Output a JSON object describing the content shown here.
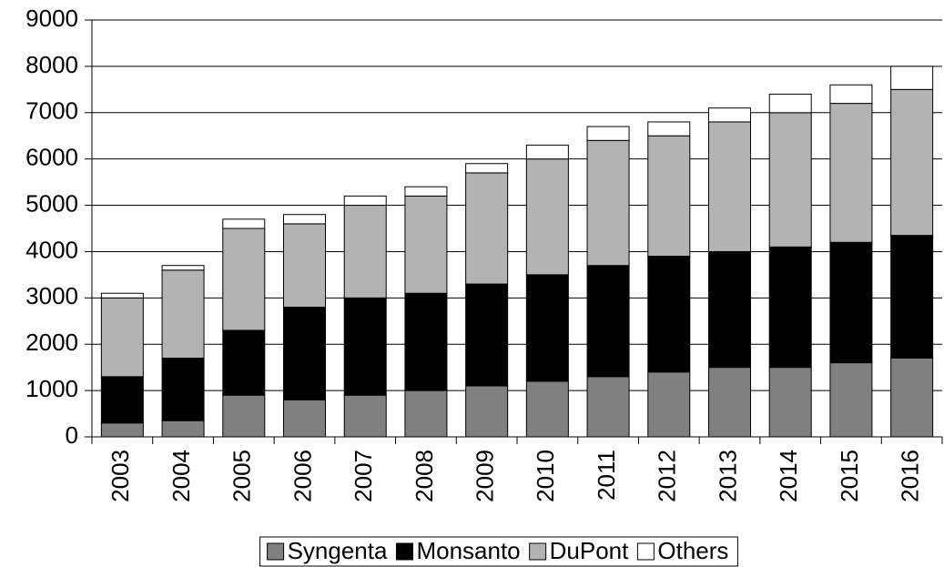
{
  "chart_data": {
    "type": "stacked_bar",
    "categories": [
      "2003",
      "2004",
      "2005",
      "2006",
      "2007",
      "2008",
      "2009",
      "2010",
      "2011",
      "2012",
      "2013",
      "2014",
      "2015",
      "2016"
    ],
    "series": [
      {
        "name": "Syngenta",
        "color": "#808080",
        "values": [
          300,
          350,
          900,
          800,
          900,
          1000,
          1100,
          1200,
          1300,
          1400,
          1500,
          1500,
          1600,
          1700
        ]
      },
      {
        "name": "Monsanto",
        "color": "#000000",
        "values": [
          1000,
          1350,
          1400,
          2000,
          2100,
          2100,
          2200,
          2300,
          2400,
          2500,
          2500,
          2600,
          2600,
          2650
        ]
      },
      {
        "name": "DuPont",
        "color": "#b3b3b3",
        "values": [
          1700,
          1900,
          2200,
          1800,
          2000,
          2100,
          2400,
          2500,
          2700,
          2600,
          2800,
          2900,
          3000,
          3150
        ]
      },
      {
        "name": "Others",
        "color": "#ffffff",
        "values": [
          100,
          100,
          200,
          200,
          200,
          200,
          200,
          300,
          300,
          300,
          300,
          400,
          400,
          500
        ]
      }
    ],
    "ylim": [
      0,
      9000
    ],
    "yticks": [
      0,
      1000,
      2000,
      3000,
      4000,
      5000,
      6000,
      7000,
      8000,
      9000
    ],
    "grid": true,
    "legend": "bottom"
  }
}
